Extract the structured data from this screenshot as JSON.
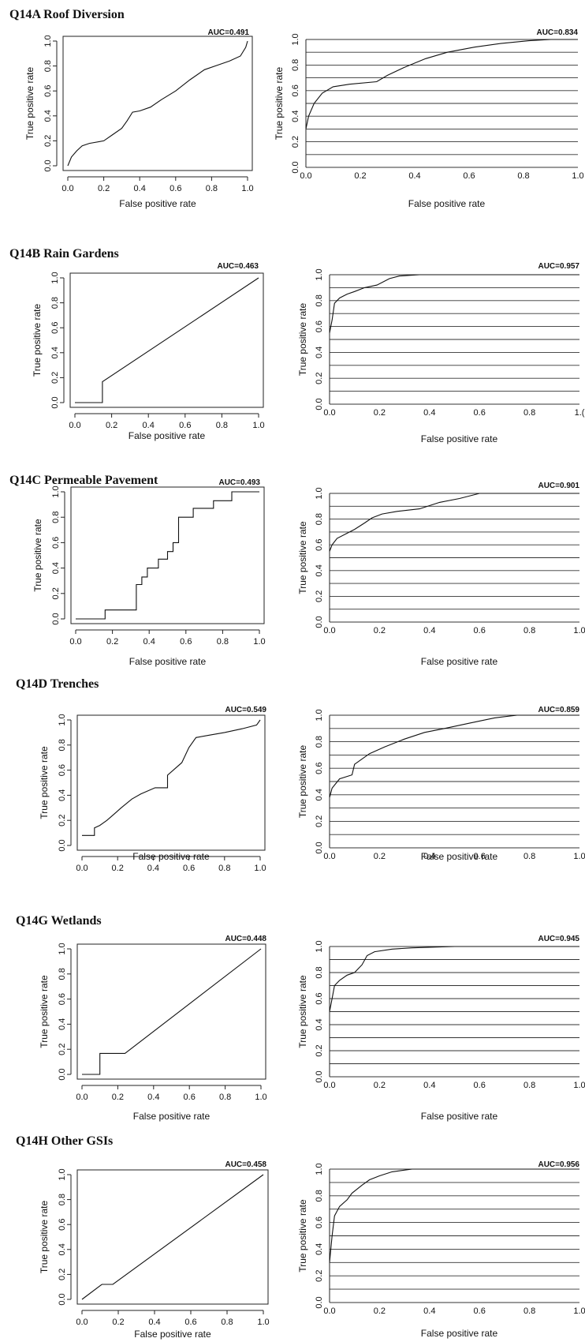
{
  "figure": {
    "xlabel": "False positive rate",
    "ylabel": "True positive rate",
    "ticks": [
      "0.0",
      "0.2",
      "0.4",
      "0.6",
      "0.8",
      "1.0"
    ],
    "right_last_tick_label": "1.(",
    "sections": [
      {
        "title": "Q14A  Roof Diversion"
      },
      {
        "title": "Q14B  Rain Gardens"
      },
      {
        "title": "Q14C  Permeable Pavement"
      },
      {
        "title": "Q14D  Trenches"
      },
      {
        "title": "Q14G  Wetlands"
      },
      {
        "title": "Q14H  Other GSIs"
      }
    ]
  },
  "chart_data": [
    {
      "type": "line",
      "panel": "Q14A left",
      "auc": "AUC=0.491",
      "xlabel": "False positive rate",
      "ylabel": "True positive rate",
      "xlim": [
        0,
        1
      ],
      "ylim": [
        0,
        1
      ],
      "grid": false,
      "series": [
        {
          "x": [
            0,
            0.02,
            0.05,
            0.08,
            0.12,
            0.2,
            0.25,
            0.3,
            0.33,
            0.36,
            0.4,
            0.46,
            0.52,
            0.6,
            0.68,
            0.76,
            0.84,
            0.9,
            0.96,
            0.99,
            1.0
          ],
          "y": [
            0,
            0.07,
            0.12,
            0.16,
            0.18,
            0.2,
            0.25,
            0.3,
            0.36,
            0.43,
            0.44,
            0.47,
            0.53,
            0.6,
            0.69,
            0.77,
            0.81,
            0.84,
            0.88,
            0.95,
            1.0
          ]
        }
      ]
    },
    {
      "type": "line",
      "panel": "Q14A right",
      "auc": "AUC=0.834",
      "xlabel": "False positive rate",
      "ylabel": "True positive rate",
      "xlim": [
        0,
        1
      ],
      "ylim": [
        0,
        1
      ],
      "grid": true,
      "series": [
        {
          "x": [
            0,
            0.01,
            0.03,
            0.06,
            0.1,
            0.16,
            0.26,
            0.3,
            0.36,
            0.44,
            0.52,
            0.62,
            0.72,
            0.82,
            0.9,
            0.98,
            1.0
          ],
          "y": [
            0.3,
            0.4,
            0.5,
            0.58,
            0.63,
            0.65,
            0.67,
            0.72,
            0.78,
            0.85,
            0.9,
            0.94,
            0.97,
            0.99,
            1.0,
            1.0,
            1.0
          ]
        }
      ]
    },
    {
      "type": "line",
      "panel": "Q14B left",
      "auc": "AUC=0.463",
      "xlabel": "False positive rate",
      "ylabel": "True positive rate",
      "xlim": [
        0,
        1
      ],
      "ylim": [
        0,
        1
      ],
      "grid": false,
      "series": [
        {
          "x": [
            0,
            0.15,
            0.15,
            1.0
          ],
          "y": [
            0,
            0,
            0.167,
            1.0
          ]
        }
      ]
    },
    {
      "type": "line",
      "panel": "Q14B right",
      "auc": "AUC=0.957",
      "xlabel": "False positive rate",
      "ylabel": "True positive rate",
      "xlim": [
        0,
        1
      ],
      "ylim": [
        0,
        1
      ],
      "grid": true,
      "series": [
        {
          "x": [
            0,
            0.01,
            0.02,
            0.04,
            0.07,
            0.1,
            0.14,
            0.19,
            0.24,
            0.28,
            0.36,
            0.5,
            0.7,
            1.0
          ],
          "y": [
            0.55,
            0.65,
            0.78,
            0.82,
            0.85,
            0.87,
            0.9,
            0.92,
            0.97,
            0.99,
            1.0,
            1.0,
            1.0,
            1.0
          ]
        }
      ]
    },
    {
      "type": "line",
      "panel": "Q14C left",
      "auc": "AUC=0.493",
      "xlabel": "False positive rate",
      "ylabel": "True positive rate",
      "xlim": [
        0,
        1
      ],
      "ylim": [
        0,
        1
      ],
      "grid": false,
      "series": [
        {
          "x": [
            0,
            0.16,
            0.16,
            0.33,
            0.33,
            0.36,
            0.36,
            0.39,
            0.39,
            0.45,
            0.45,
            0.5,
            0.5,
            0.53,
            0.53,
            0.56,
            0.56,
            0.64,
            0.64,
            0.75,
            0.75,
            0.85,
            0.85,
            1.0
          ],
          "y": [
            0,
            0,
            0.07,
            0.07,
            0.27,
            0.27,
            0.33,
            0.33,
            0.4,
            0.4,
            0.47,
            0.47,
            0.53,
            0.53,
            0.6,
            0.6,
            0.8,
            0.8,
            0.87,
            0.87,
            0.93,
            0.93,
            1.0,
            1.0
          ]
        }
      ]
    },
    {
      "type": "line",
      "panel": "Q14C right",
      "auc": "AUC=0.901",
      "xlabel": "False positive rate",
      "ylabel": "True positive rate",
      "xlim": [
        0,
        1
      ],
      "ylim": [
        0,
        1
      ],
      "grid": true,
      "series": [
        {
          "x": [
            0,
            0.01,
            0.03,
            0.07,
            0.1,
            0.14,
            0.17,
            0.21,
            0.27,
            0.36,
            0.44,
            0.52,
            0.6,
            0.8,
            1.0
          ],
          "y": [
            0.55,
            0.6,
            0.65,
            0.69,
            0.72,
            0.77,
            0.81,
            0.84,
            0.86,
            0.88,
            0.93,
            0.96,
            1.0,
            1.0,
            1.0
          ]
        }
      ]
    },
    {
      "type": "line",
      "panel": "Q14D left",
      "auc": "AUC=0.549",
      "xlabel": "False positive rate",
      "ylabel": "True positive rate",
      "xlim": [
        0,
        1
      ],
      "ylim": [
        0,
        1
      ],
      "grid": false,
      "series": [
        {
          "x": [
            0,
            0.07,
            0.07,
            0.1,
            0.14,
            0.18,
            0.22,
            0.28,
            0.33,
            0.41,
            0.48,
            0.48,
            0.56,
            0.6,
            0.64,
            0.72,
            0.8,
            0.9,
            0.98,
            1.0
          ],
          "y": [
            0.08,
            0.08,
            0.14,
            0.16,
            0.2,
            0.25,
            0.3,
            0.37,
            0.41,
            0.46,
            0.46,
            0.56,
            0.66,
            0.78,
            0.86,
            0.88,
            0.9,
            0.93,
            0.96,
            1.0
          ]
        }
      ]
    },
    {
      "type": "line",
      "panel": "Q14D right",
      "auc": "AUC=0.859",
      "xlabel": "False positive rate",
      "ylabel": "True positive rate",
      "xlim": [
        0,
        1
      ],
      "ylim": [
        0,
        1
      ],
      "grid": true,
      "series": [
        {
          "x": [
            0,
            0.01,
            0.04,
            0.09,
            0.1,
            0.16,
            0.22,
            0.3,
            0.38,
            0.46,
            0.56,
            0.66,
            0.75,
            1.0
          ],
          "y": [
            0.38,
            0.45,
            0.52,
            0.55,
            0.63,
            0.71,
            0.76,
            0.82,
            0.87,
            0.9,
            0.94,
            0.98,
            1.0,
            1.0
          ]
        }
      ]
    },
    {
      "type": "line",
      "panel": "Q14G left",
      "auc": "AUC=0.448",
      "xlabel": "False positive rate",
      "ylabel": "True positive rate",
      "xlim": [
        0,
        1
      ],
      "ylim": [
        0,
        1
      ],
      "grid": false,
      "series": [
        {
          "x": [
            0,
            0.1,
            0.1,
            0.24,
            1.0
          ],
          "y": [
            0,
            0,
            0.167,
            0.167,
            1.0
          ]
        }
      ]
    },
    {
      "type": "line",
      "panel": "Q14G right",
      "auc": "AUC=0.945",
      "xlabel": "False positive rate",
      "ylabel": "True positive rate",
      "xlim": [
        0,
        1
      ],
      "ylim": [
        0,
        1
      ],
      "grid": true,
      "series": [
        {
          "x": [
            0,
            0.01,
            0.02,
            0.04,
            0.07,
            0.1,
            0.13,
            0.15,
            0.18,
            0.25,
            0.33,
            0.5,
            0.75,
            1.0
          ],
          "y": [
            0.5,
            0.6,
            0.7,
            0.74,
            0.78,
            0.8,
            0.86,
            0.93,
            0.96,
            0.98,
            0.99,
            1.0,
            1.0,
            1.0
          ]
        }
      ]
    },
    {
      "type": "line",
      "panel": "Q14H left",
      "auc": "AUC=0.458",
      "xlabel": "False positive rate",
      "ylabel": "True positive rate",
      "xlim": [
        0,
        1
      ],
      "ylim": [
        0,
        1
      ],
      "grid": false,
      "series": [
        {
          "x": [
            0,
            0.11,
            0.17,
            1.0
          ],
          "y": [
            0,
            0.12,
            0.12,
            1.0
          ]
        }
      ]
    },
    {
      "type": "line",
      "panel": "Q14H right",
      "auc": "AUC=0.956",
      "xlabel": "False positive rate",
      "ylabel": "True positive rate",
      "xlim": [
        0,
        1
      ],
      "ylim": [
        0,
        1
      ],
      "grid": true,
      "series": [
        {
          "x": [
            0,
            0.01,
            0.02,
            0.04,
            0.07,
            0.09,
            0.13,
            0.16,
            0.2,
            0.25,
            0.33,
            0.5,
            1.0
          ],
          "y": [
            0.3,
            0.5,
            0.65,
            0.72,
            0.77,
            0.82,
            0.88,
            0.92,
            0.95,
            0.98,
            1.0,
            1.0,
            1.0
          ]
        }
      ]
    }
  ]
}
